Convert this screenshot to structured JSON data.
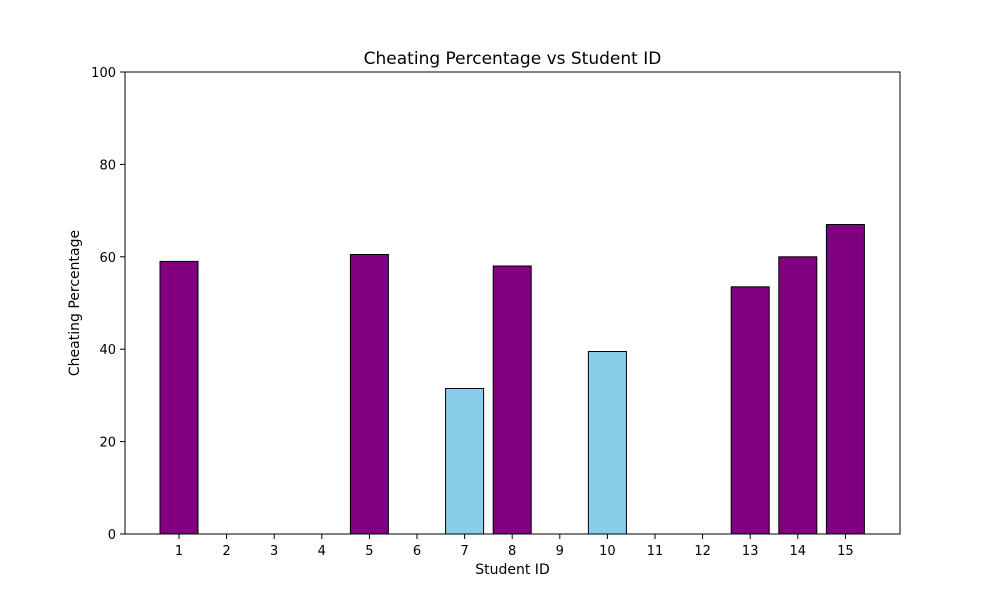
{
  "chart_data": {
    "type": "bar",
    "title": "Cheating Percentage vs Student ID",
    "xlabel": "Student ID",
    "ylabel": "Cheating Percentage",
    "ylim": [
      0,
      100
    ],
    "yticks": [
      0,
      20,
      40,
      60,
      80,
      100
    ],
    "categories": [
      "1",
      "2",
      "3",
      "4",
      "5",
      "6",
      "7",
      "8",
      "9",
      "10",
      "11",
      "12",
      "13",
      "14",
      "15"
    ],
    "values": [
      59,
      0,
      0,
      0,
      60.5,
      0,
      31.5,
      58,
      0,
      39.5,
      0,
      0,
      53.5,
      60,
      67
    ],
    "bar_colors": [
      "#800080",
      "#800080",
      "#800080",
      "#800080",
      "#800080",
      "#800080",
      "#87ceeb",
      "#800080",
      "#800080",
      "#87ceeb",
      "#800080",
      "#800080",
      "#800080",
      "#800080",
      "#800080"
    ],
    "edge_color": "#000000",
    "grid": false,
    "legend": null
  }
}
